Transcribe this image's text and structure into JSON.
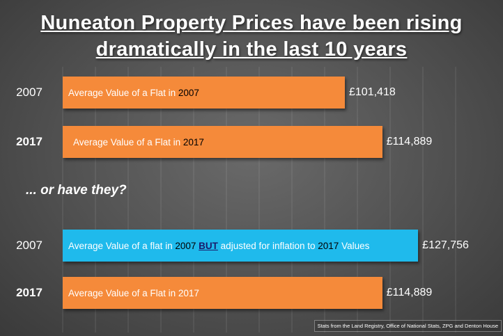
{
  "chart_data": {
    "type": "bar",
    "orientation": "horizontal",
    "title_line1": "Nuneaton Property Prices have been rising",
    "title_line2": "dramatically in the last 10 years",
    "subtitle": "... or have they?",
    "xlim": [
      0,
      200000
    ],
    "grid": true,
    "groups": [
      {
        "bars": [
          {
            "category": "2007",
            "value": 101418,
            "value_label": "£101,418",
            "color": "#f58a3a",
            "label_parts": [
              {
                "text": "Average Value of a Flat in ",
                "dark": false
              },
              {
                "text": "2007",
                "dark": true
              }
            ]
          },
          {
            "category": "2017",
            "value": 114889,
            "value_label": "£114,889",
            "color": "#f58a3a",
            "label_parts": [
              {
                "text": "Average Value of a Flat in ",
                "dark": false
              },
              {
                "text": "2017",
                "dark": true
              }
            ]
          }
        ]
      },
      {
        "bars": [
          {
            "category": "2007",
            "value": 127756,
            "value_label": "£127,756",
            "color": "#1fbaec",
            "label_parts": [
              {
                "text": "Average Value of a flat in ",
                "dark": false
              },
              {
                "text": "2007",
                "dark": true
              },
              {
                "text": " ",
                "dark": false
              },
              {
                "text": "BUT",
                "dark": "u"
              },
              {
                "text": " adjusted for inflation to ",
                "dark": false
              },
              {
                "text": "2017",
                "dark": true
              },
              {
                "text": " Values",
                "dark": false
              }
            ]
          },
          {
            "category": "2017",
            "value": 114889,
            "value_label": "£114,889",
            "color": "#f58a3a",
            "label_parts": [
              {
                "text": "Average Value of a Flat in 2017",
                "dark": false
              }
            ]
          }
        ]
      }
    ]
  },
  "source_note": "Stats from the Land Registry, Office of National Stats, ZPG and Denton House"
}
